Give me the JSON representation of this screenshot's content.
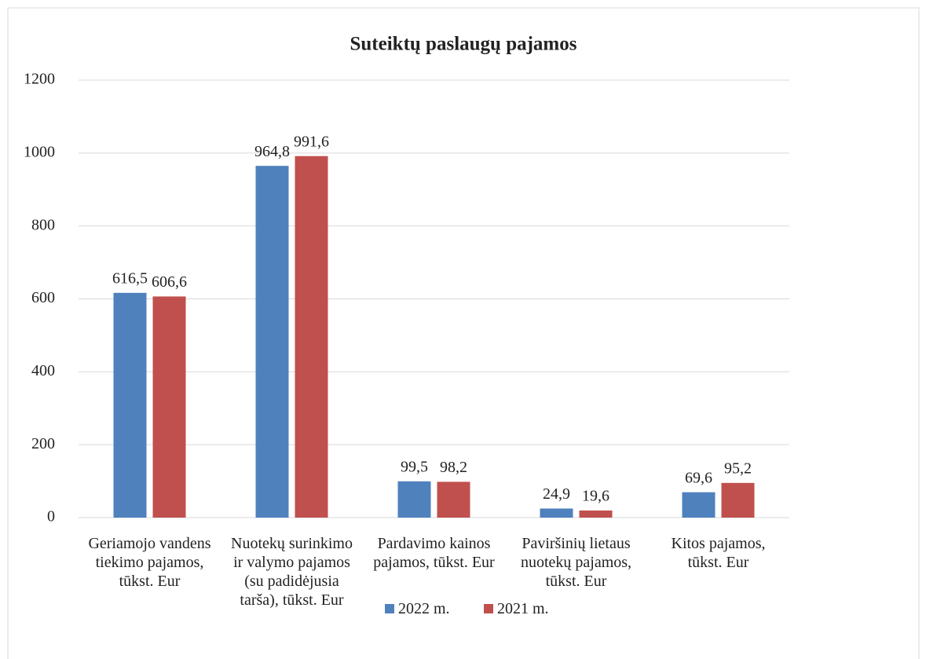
{
  "chart_data": {
    "type": "bar",
    "title": "Suteiktų paslaugų pajamos",
    "categories": [
      "Geriamojo vandens tiekimo pajamos, tūkst. Eur",
      "Nuotekų surinkimo ir valymo pajamos (su padidėjusia tarša), tūkst. Eur",
      "Pardavimo kainos pajamos, tūkst. Eur",
      "Paviršinių lietaus nuotekų pajamos, tūkst. Eur",
      "Kitos pajamos, tūkst. Eur"
    ],
    "series": [
      {
        "name": "2022 m.",
        "color": "#4f81bd",
        "values": [
          616.5,
          964.8,
          99.5,
          24.9,
          69.6
        ],
        "value_labels": [
          "616,5",
          "964,8",
          "99,5",
          "24,9",
          "69,6"
        ]
      },
      {
        "name": "2021 m.",
        "color": "#c0504d",
        "values": [
          606.6,
          991.6,
          98.2,
          19.6,
          95.2
        ],
        "value_labels": [
          "606,6",
          "991,6",
          "98,2",
          "19,6",
          "95,2"
        ]
      }
    ],
    "ylim": [
      0,
      1200
    ],
    "yticks": [
      0,
      200,
      400,
      600,
      800,
      1000,
      1200
    ],
    "grid": true,
    "legend": "bottom"
  }
}
